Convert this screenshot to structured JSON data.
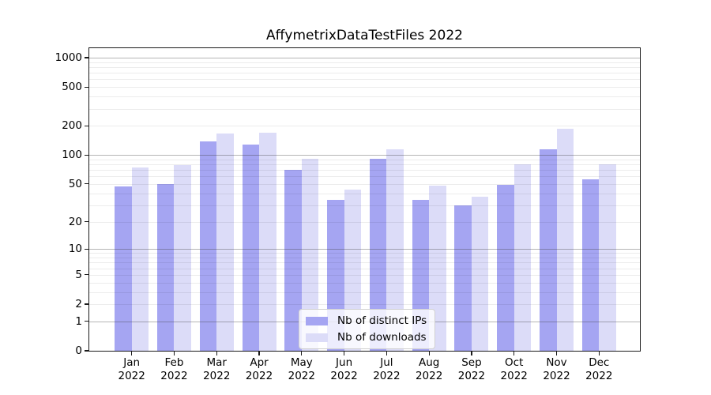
{
  "title": "AffymetrixDataTestFiles 2022",
  "chart_data": {
    "type": "bar",
    "title": "AffymetrixDataTestFiles 2022",
    "categories": [
      "Jan 2022",
      "Feb 2022",
      "Mar 2022",
      "Apr 2022",
      "May 2022",
      "Jun 2022",
      "Jul 2022",
      "Aug 2022",
      "Sep 2022",
      "Oct 2022",
      "Nov 2022",
      "Dec 2022"
    ],
    "series": [
      {
        "name": "Nb of distinct IPs",
        "color": "#a5a5f2",
        "values": [
          47,
          50,
          137,
          127,
          70,
          34,
          92,
          34,
          30,
          49,
          115,
          56
        ]
      },
      {
        "name": "Nb of downloads",
        "color": "#dcdcf8",
        "values": [
          74,
          78,
          166,
          170,
          91,
          44,
          115,
          48,
          37,
          80,
          187,
          80
        ]
      }
    ],
    "xlabel": "",
    "ylabel": "",
    "y_scale": "log10(1+x)",
    "y_ticks": [
      0,
      1,
      2,
      5,
      10,
      20,
      50,
      100,
      200,
      500,
      1000
    ],
    "y_tick_labels": [
      "0",
      "1",
      "2",
      "5",
      "10",
      "20",
      "50",
      "100",
      "200",
      "500",
      "1000"
    ],
    "y_major_gridlines": [
      1,
      10,
      100,
      1000
    ],
    "y_minor_gridlines": [
      2,
      3,
      4,
      5,
      6,
      7,
      8,
      9,
      20,
      30,
      40,
      50,
      60,
      70,
      80,
      90,
      200,
      300,
      400,
      500,
      600,
      700,
      800,
      900
    ],
    "ylim": [
      0,
      1250
    ],
    "grid": "both, drawn above bars",
    "legend_position": "lower center, inside plot",
    "legend": {
      "items": [
        {
          "label": "Nb of distinct IPs",
          "color": "#a5a5f2"
        },
        {
          "label": "Nb of downloads",
          "color": "#dcdcf8"
        }
      ]
    }
  },
  "colors": {
    "background": "#ffffff",
    "bar_ips": "#a5a5f2",
    "bar_downloads": "#dcdcf8",
    "grid_major": "#b0b0b0",
    "grid_minor": "#ededed",
    "axis": "#1a1a1a",
    "text": "#000000",
    "legend_border": "#d0d0d0"
  }
}
